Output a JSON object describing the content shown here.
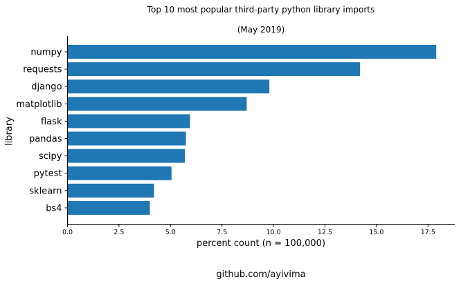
{
  "chart_data": {
    "type": "bar",
    "orientation": "horizontal",
    "title": "Top 10 most popular third-party python library imports",
    "subtitle": "(May 2019)",
    "xlabel": "percent count (n = 100,000)",
    "ylabel": "library",
    "footer": "github.com/ayivima",
    "categories": [
      "numpy",
      "requests",
      "django",
      "matplotlib",
      "flask",
      "pandas",
      "scipy",
      "pytest",
      "sklearn",
      "bs4"
    ],
    "values": [
      17.9,
      14.2,
      9.8,
      8.7,
      5.95,
      5.75,
      5.7,
      5.05,
      4.2,
      4.0
    ],
    "xlim": [
      0,
      18.8
    ],
    "xticks": [
      "0.0",
      "2.5",
      "5.0",
      "7.5",
      "10.0",
      "12.5",
      "15.0",
      "17.5"
    ],
    "grid": false,
    "legend": "none",
    "bar_color": "#1f77b4"
  }
}
